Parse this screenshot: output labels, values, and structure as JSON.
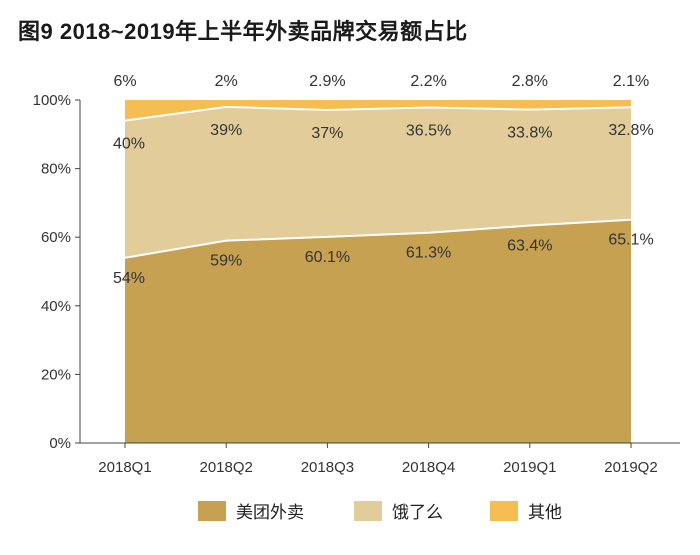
{
  "title": "图9  2018~2019年上半年外卖品牌交易额占比",
  "chart_data": {
    "type": "area",
    "stacked": true,
    "categories": [
      "2018Q1",
      "2018Q2",
      "2018Q3",
      "2018Q4",
      "2019Q1",
      "2019Q2"
    ],
    "y_ticks": [
      "0%",
      "20%",
      "40%",
      "60%",
      "80%",
      "100%"
    ],
    "ylim": [
      0,
      100
    ],
    "series": [
      {
        "name": "美团外卖",
        "color": "#c6a151",
        "values": [
          54,
          59,
          60.1,
          61.3,
          63.4,
          65.1
        ],
        "labels": [
          "54%",
          "59%",
          "60.1%",
          "61.3%",
          "63.4%",
          "65.1%"
        ]
      },
      {
        "name": "饿了么",
        "color": "#e2cc9a",
        "values": [
          40,
          39,
          37,
          36.5,
          33.8,
          32.8
        ],
        "labels": [
          "40%",
          "39%",
          "37%",
          "36.5%",
          "33.8%",
          "32.8%"
        ]
      },
      {
        "name": "其他",
        "color": "#f5bd52",
        "values": [
          6,
          2,
          2.9,
          2.2,
          2.8,
          2.1
        ],
        "labels": [
          "6%",
          "2%",
          "2.9%",
          "2.2%",
          "2.8%",
          "2.1%"
        ]
      }
    ],
    "legend_position": "bottom"
  }
}
